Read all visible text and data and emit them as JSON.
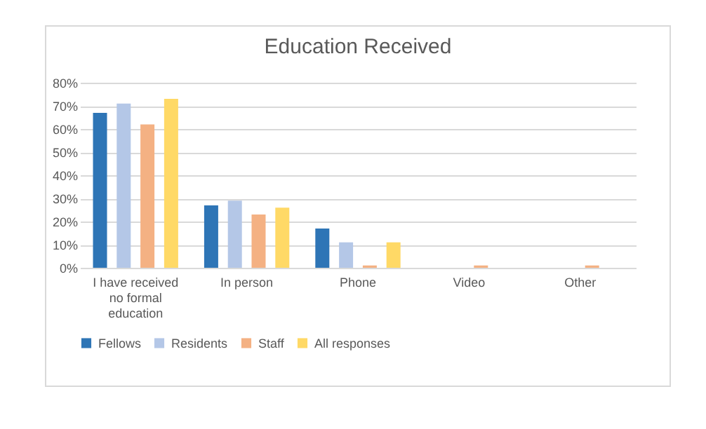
{
  "chart_data": {
    "type": "bar",
    "title": "Education Received",
    "categories": [
      "I have received no formal education",
      "In person",
      "Phone",
      "Video",
      "Other"
    ],
    "series": [
      {
        "name": "Fellows",
        "color": "#2e75b6",
        "values": [
          67,
          27,
          17,
          0,
          0
        ]
      },
      {
        "name": "Residents",
        "color": "#b4c7e7",
        "values": [
          71,
          29,
          11,
          0,
          0
        ]
      },
      {
        "name": "Staff",
        "color": "#f4b183",
        "values": [
          62,
          23,
          1,
          1,
          1
        ]
      },
      {
        "name": "All responses",
        "color": "#ffd966",
        "values": [
          73,
          26,
          11,
          0,
          0
        ]
      }
    ],
    "ylim": [
      0,
      80
    ],
    "yticks": [
      {
        "value": 0,
        "label": "0%"
      },
      {
        "value": 10,
        "label": "10%"
      },
      {
        "value": 20,
        "label": "20%"
      },
      {
        "value": 30,
        "label": "30%"
      },
      {
        "value": 40,
        "label": "40%"
      },
      {
        "value": 50,
        "label": "50%"
      },
      {
        "value": 60,
        "label": "60%"
      },
      {
        "value": 70,
        "label": "70%"
      },
      {
        "value": 80,
        "label": "80%"
      }
    ],
    "grid": "y",
    "legend": "bottom"
  }
}
